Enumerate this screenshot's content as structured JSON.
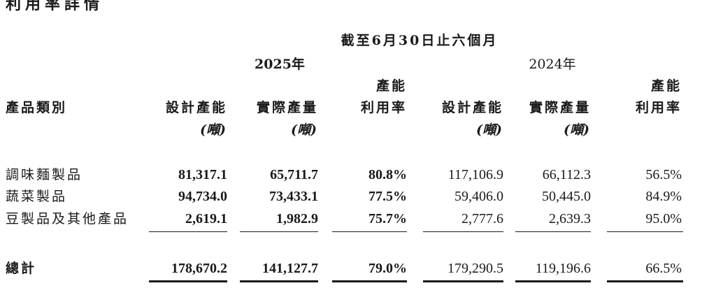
{
  "title_partial": "利用率詳情",
  "period_header": "截至6月30日止六個月",
  "years": {
    "y2025": "2025年",
    "y2024": "2024年"
  },
  "columns": {
    "category": "產品類別",
    "design_capacity": "設計產能",
    "actual_output": "實際產量",
    "utilization_line1": "產能",
    "utilization_line2": "利用率",
    "unit": "(噸)"
  },
  "rows": [
    {
      "category": "調味麵製品",
      "y2025": {
        "design": "81,317.1",
        "actual": "65,711.7",
        "rate": "80.8%"
      },
      "y2024": {
        "design": "117,106.9",
        "actual": "66,112.3",
        "rate": "56.5%"
      }
    },
    {
      "category": "蔬菜製品",
      "y2025": {
        "design": "94,734.0",
        "actual": "73,433.1",
        "rate": "77.5%"
      },
      "y2024": {
        "design": "59,406.0",
        "actual": "50,445.0",
        "rate": "84.9%"
      }
    },
    {
      "category": "豆製品及其他產品",
      "y2025": {
        "design": "2,619.1",
        "actual": "1,982.9",
        "rate": "75.7%"
      },
      "y2024": {
        "design": "2,777.6",
        "actual": "2,639.3",
        "rate": "95.0%"
      }
    }
  ],
  "total": {
    "category": "總計",
    "y2025": {
      "design": "178,670.2",
      "actual": "141,127.7",
      "rate": "79.0%"
    },
    "y2024": {
      "design": "179,290.5",
      "actual": "119,196.6",
      "rate": "66.5%"
    }
  }
}
